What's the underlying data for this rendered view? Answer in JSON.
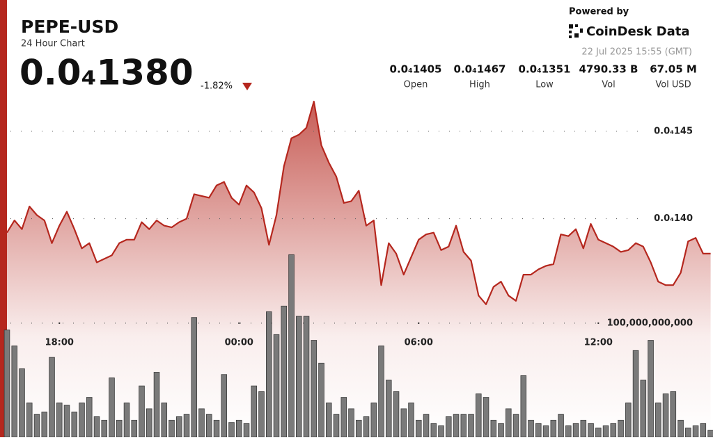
{
  "header": {
    "symbol": "PEPE-USD",
    "subtitle": "24 Hour Chart",
    "price": "0.0₄1380",
    "change": "-1.82%",
    "powered_by": "Powered by",
    "brand": "CoinDesk Data",
    "timestamp": "22 Jul 2025 15:55 (GMT)"
  },
  "stats": [
    {
      "value": "0.0₄1405",
      "label": "Open"
    },
    {
      "value": "0.0₄1467",
      "label": "High"
    },
    {
      "value": "0.0₄1351",
      "label": "Low"
    },
    {
      "value": "4790.33 B",
      "label": "Vol"
    },
    {
      "value": "67.05 M",
      "label": "Vol USD"
    }
  ],
  "chart_data": {
    "type": "line",
    "x": [
      16.25,
      16.5,
      16.75,
      17,
      17.25,
      17.5,
      17.75,
      18,
      18.25,
      18.5,
      18.75,
      19,
      19.25,
      19.5,
      19.75,
      20,
      20.25,
      20.5,
      20.75,
      21,
      21.25,
      21.5,
      21.75,
      22,
      22.25,
      22.5,
      22.75,
      23,
      23.25,
      23.5,
      23.75,
      24,
      24.25,
      24.5,
      24.75,
      25,
      25.25,
      25.5,
      25.75,
      26,
      26.25,
      26.5,
      26.75,
      27,
      27.25,
      27.5,
      27.75,
      28,
      28.25,
      28.5,
      28.75,
      29,
      29.25,
      29.5,
      29.75,
      30,
      30.25,
      30.5,
      30.75,
      31,
      31.25,
      31.5,
      31.75,
      32,
      32.25,
      32.5,
      32.75,
      33,
      33.25,
      33.5,
      33.75,
      34,
      34.25,
      34.5,
      34.75,
      35,
      35.25,
      35.5,
      35.75,
      36,
      36.25,
      36.5,
      36.75,
      37,
      37.25,
      37.5,
      37.75,
      38,
      38.25,
      38.5,
      38.75,
      39,
      39.25,
      39.5,
      39.75
    ],
    "xlim": [
      16.25,
      39.83
    ],
    "xticks": [
      {
        "value": 18,
        "label": "18:00"
      },
      {
        "value": 24,
        "label": "00:00"
      },
      {
        "value": 30,
        "label": "06:00"
      },
      {
        "value": 36,
        "label": "12:00"
      }
    ],
    "ylim": [
      1.275e-05,
      1.4694e-05
    ],
    "yticks": [
      {
        "value": 1.4e-05,
        "label": "0.0₄140"
      },
      {
        "value": 1.45e-05,
        "label": "0.0₄145"
      }
    ],
    "y2lim": [
      0,
      298000000000.0
    ],
    "y2ticks": [
      {
        "value": 100000000000.0,
        "label": "100,000,000,000"
      }
    ],
    "grid": true,
    "series": [
      {
        "color": "#b5271e",
        "values": [
          1.392e-05,
          1.399e-05,
          1.394e-05,
          1.407e-05,
          1.402e-05,
          1.399e-05,
          1.386e-05,
          1.396e-05,
          1.404e-05,
          1.394e-05,
          1.383e-05,
          1.386e-05,
          1.375e-05,
          1.377e-05,
          1.379e-05,
          1.386e-05,
          1.388e-05,
          1.388e-05,
          1.398e-05,
          1.394e-05,
          1.399e-05,
          1.396e-05,
          1.395e-05,
          1.398e-05,
          1.4e-05,
          1.414e-05,
          1.413e-05,
          1.412e-05,
          1.419e-05,
          1.421e-05,
          1.412e-05,
          1.408e-05,
          1.419e-05,
          1.415e-05,
          1.406e-05,
          1.385e-05,
          1.402e-05,
          1.43e-05,
          1.446e-05,
          1.448e-05,
          1.452e-05,
          1.467e-05,
          1.442e-05,
          1.432e-05,
          1.424e-05,
          1.409e-05,
          1.41e-05,
          1.416e-05,
          1.396e-05,
          1.399e-05,
          1.362e-05,
          1.386e-05,
          1.38e-05,
          1.368e-05,
          1.378e-05,
          1.388e-05,
          1.391e-05,
          1.392e-05,
          1.382e-05,
          1.384e-05,
          1.396e-05,
          1.381e-05,
          1.376e-05,
          1.356e-05,
          1.351e-05,
          1.361e-05,
          1.364e-05,
          1.356e-05,
          1.353e-05,
          1.368e-05,
          1.368e-05,
          1.371e-05,
          1.373e-05,
          1.374e-05,
          1.391e-05,
          1.39e-05,
          1.394e-05,
          1.383e-05,
          1.397e-05,
          1.388e-05,
          1.386e-05,
          1.384e-05,
          1.381e-05,
          1.382e-05,
          1.386e-05,
          1.384e-05,
          1.375e-05,
          1.364e-05,
          1.362e-05,
          1.362e-05,
          1.369e-05,
          1.387e-05,
          1.389e-05,
          1.38e-05,
          1.38e-05
        ]
      },
      {
        "type": "bar",
        "axis": "y2",
        "color": "#7a7a7a",
        "values": [
          94000000000.0,
          80000000000.0,
          60000000000.0,
          30000000000.0,
          20000000000.0,
          22000000000.0,
          70000000000.0,
          30000000000.0,
          28000000000.0,
          22000000000.0,
          30000000000.0,
          35000000000.0,
          18000000000.0,
          15000000000.0,
          52000000000.0,
          15000000000.0,
          30000000000.0,
          15000000000.0,
          45000000000.0,
          25000000000.0,
          57000000000.0,
          30000000000.0,
          15000000000.0,
          18000000000.0,
          20000000000.0,
          105000000000.0,
          25000000000.0,
          20000000000.0,
          15000000000.0,
          55000000000.0,
          13000000000.0,
          15000000000.0,
          12000000000.0,
          45000000000.0,
          40000000000.0,
          110000000000.0,
          90000000000.0,
          115000000000.0,
          160000000000.0,
          106000000000.0,
          106000000000.0,
          85000000000.0,
          65000000000.0,
          30000000000.0,
          20000000000.0,
          35000000000.0,
          25000000000.0,
          15000000000.0,
          18000000000.0,
          30000000000.0,
          80000000000.0,
          50000000000.0,
          40000000000.0,
          25000000000.0,
          30000000000.0,
          15000000000.0,
          20000000000.0,
          12000000000.0,
          10000000000.0,
          18000000000.0,
          20000000000.0,
          20000000000.0,
          20000000000.0,
          38000000000.0,
          35000000000.0,
          15000000000.0,
          12000000000.0,
          25000000000.0,
          20000000000.0,
          54000000000.0,
          15000000000.0,
          12000000000.0,
          10000000000.0,
          15000000000.0,
          20000000000.0,
          10000000000.0,
          12000000000.0,
          15000000000.0,
          12000000000.0,
          8000000000.0,
          10000000000.0,
          12000000000.0,
          15000000000.0,
          30000000000.0,
          76000000000.0,
          50000000000.0,
          85000000000.0,
          30000000000.0,
          38000000000.0,
          40000000000.0,
          15000000000.0,
          8000000000.0,
          10000000000.0,
          12000000000.0,
          6000000000.0
        ]
      }
    ]
  }
}
